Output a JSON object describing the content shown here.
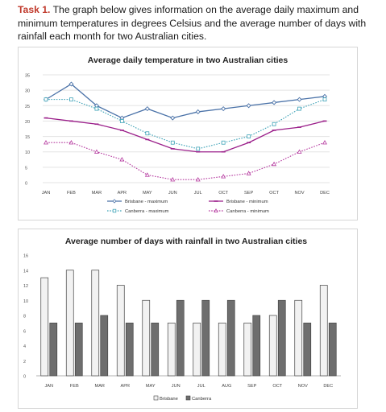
{
  "task": {
    "label": "Task 1.",
    "text": "The graph below gives information on the average daily maximum and minimum temperatures in degrees Celsius and the average number of days with rainfall each month for two Australian cities."
  },
  "chart_data": [
    {
      "type": "line",
      "title": "Average daily temperature in two Australian cities",
      "xlabel": "",
      "ylabel": "",
      "categories": [
        "JAN",
        "FEB",
        "MAR",
        "APR",
        "MAY",
        "JUN",
        "JUL",
        "OCT",
        "SEP",
        "OCT",
        "NOV",
        "DEC"
      ],
      "ylim": [
        0,
        35
      ],
      "yticks": [
        0,
        5,
        10,
        15,
        20,
        25,
        30,
        35
      ],
      "grid": true,
      "legend": "bottom",
      "series": [
        {
          "name": "Brisbane - maximum",
          "values": [
            27,
            32,
            25,
            21,
            24,
            21,
            23,
            24,
            25,
            26,
            27,
            28
          ],
          "color": "#4a72a8",
          "dash": "solid",
          "marker": "diamond"
        },
        {
          "name": "Brisbane - minimum",
          "values": [
            21,
            20,
            19,
            17,
            14,
            11,
            10,
            10,
            13,
            17,
            18,
            20
          ],
          "color": "#9b1f8a",
          "dash": "solid",
          "marker": "dash"
        },
        {
          "name": "Canberra - maximum",
          "values": [
            27,
            27,
            24,
            20,
            16,
            13,
            11,
            13,
            15,
            19,
            24,
            27
          ],
          "color": "#3fa3b8",
          "dash": "dotted",
          "marker": "square"
        },
        {
          "name": "Canberra - minimum",
          "values": [
            13,
            13,
            10,
            7.5,
            2.5,
            1,
            1,
            2,
            3,
            6,
            10,
            13
          ],
          "color": "#b5399f",
          "dash": "dotted",
          "marker": "triangle"
        }
      ]
    },
    {
      "type": "bar",
      "title": "Average number of days with rainfall in two Australian cities",
      "xlabel": "",
      "ylabel": "",
      "categories": [
        "JAN",
        "FEB",
        "MAR",
        "APR",
        "MAY",
        "JUN",
        "JUL",
        "AUG",
        "SEP",
        "OCT",
        "NOV",
        "DEC"
      ],
      "ylim": [
        0,
        16
      ],
      "yticks": [
        0,
        2,
        4,
        6,
        8,
        10,
        12,
        14,
        16
      ],
      "grid": false,
      "legend": "bottom",
      "series": [
        {
          "name": "Brisbane",
          "values": [
            13,
            14,
            14,
            12,
            10,
            7,
            7,
            7,
            7,
            8,
            10,
            12
          ],
          "color": "#f2f2f2"
        },
        {
          "name": "Canberra",
          "values": [
            7,
            7,
            8,
            7,
            7,
            10,
            10,
            10,
            8,
            10,
            7,
            7
          ],
          "color": "#6e6e6e"
        }
      ]
    }
  ]
}
